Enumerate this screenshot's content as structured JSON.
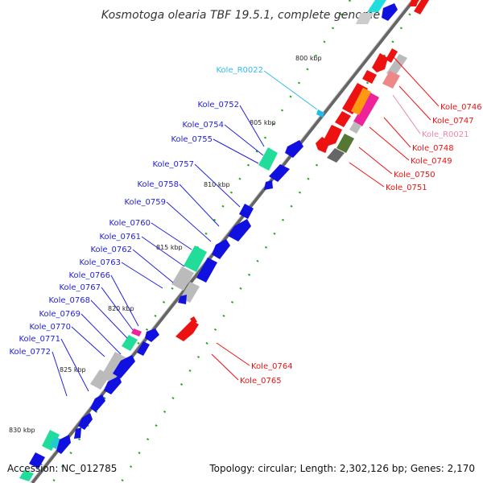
{
  "title": "Kosmotoga olearia TBF 19.5.1, complete genome",
  "footer": {
    "accession": "Accession: NC_012785",
    "topology": "Topology: circular; Length: 2,302,126 bp; Genes: 2,170"
  },
  "colors": {
    "backbone": "#666666",
    "minus_strand": "#1010e0",
    "plus_strand": "#ee1111",
    "rna": "#22bbee",
    "tick": "#22aa22",
    "green_cog": "#22dd99",
    "gray_cog": "#bbbbbb",
    "dark_gray_cog": "#666666",
    "olive_cog": "#557733",
    "orange_cog": "#ff9911",
    "magenta_cog": "#ee2299",
    "pink_cog": "#ee8888",
    "pink_label": "#ee88aa"
  },
  "ticks": [
    "800 kbp",
    "805 kbp",
    "810 kbp",
    "815 kbp",
    "820 kbp",
    "825 kbp",
    "830 kbp"
  ],
  "labels_left": [
    "Kole_R0022",
    "Kole_0752",
    "Kole_0754",
    "Kole_0755",
    "Kole_0757",
    "Kole_0758",
    "Kole_0759",
    "Kole_0760",
    "Kole_0761",
    "Kole_0762",
    "Kole_0763",
    "Kole_0766",
    "Kole_0767",
    "Kole_0768",
    "Kole_0769",
    "Kole_0770",
    "Kole_0771",
    "Kole_0772"
  ],
  "labels_right_top": [
    "Kole_0746",
    "Kole_0747",
    "Kole_R0021",
    "Kole_0748",
    "Kole_0749",
    "Kole_0750",
    "Kole_0751"
  ],
  "labels_right_bottom": [
    "Kole_0764",
    "Kole_0765"
  ]
}
